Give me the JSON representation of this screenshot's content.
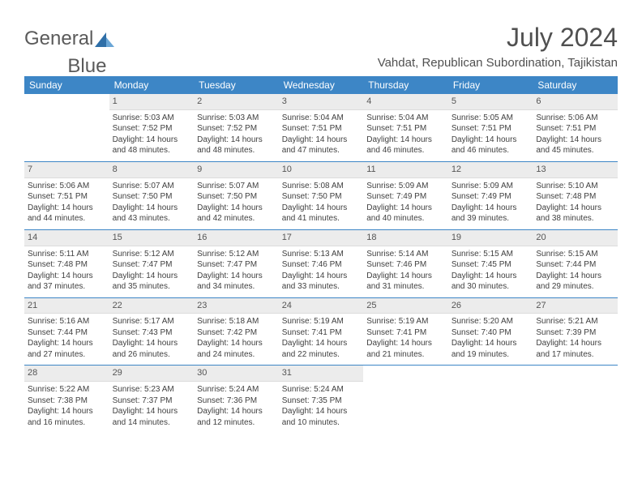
{
  "logo": {
    "word1": "General",
    "word2": "Blue"
  },
  "title": "July 2024",
  "location": "Vahdat, Republican Subordination, Tajikistan",
  "colors": {
    "header_bg": "#3d86c6",
    "header_text": "#ffffff",
    "daynum_bg": "#ececec",
    "text": "#404040",
    "title_text": "#505050",
    "row_border": "#3d86c6"
  },
  "daynames": [
    "Sunday",
    "Monday",
    "Tuesday",
    "Wednesday",
    "Thursday",
    "Friday",
    "Saturday"
  ],
  "weeks": [
    [
      null,
      {
        "num": "1",
        "sunrise": "5:03 AM",
        "sunset": "7:52 PM",
        "daylight": "14 hours and 48 minutes."
      },
      {
        "num": "2",
        "sunrise": "5:03 AM",
        "sunset": "7:52 PM",
        "daylight": "14 hours and 48 minutes."
      },
      {
        "num": "3",
        "sunrise": "5:04 AM",
        "sunset": "7:51 PM",
        "daylight": "14 hours and 47 minutes."
      },
      {
        "num": "4",
        "sunrise": "5:04 AM",
        "sunset": "7:51 PM",
        "daylight": "14 hours and 46 minutes."
      },
      {
        "num": "5",
        "sunrise": "5:05 AM",
        "sunset": "7:51 PM",
        "daylight": "14 hours and 46 minutes."
      },
      {
        "num": "6",
        "sunrise": "5:06 AM",
        "sunset": "7:51 PM",
        "daylight": "14 hours and 45 minutes."
      }
    ],
    [
      {
        "num": "7",
        "sunrise": "5:06 AM",
        "sunset": "7:51 PM",
        "daylight": "14 hours and 44 minutes."
      },
      {
        "num": "8",
        "sunrise": "5:07 AM",
        "sunset": "7:50 PM",
        "daylight": "14 hours and 43 minutes."
      },
      {
        "num": "9",
        "sunrise": "5:07 AM",
        "sunset": "7:50 PM",
        "daylight": "14 hours and 42 minutes."
      },
      {
        "num": "10",
        "sunrise": "5:08 AM",
        "sunset": "7:50 PM",
        "daylight": "14 hours and 41 minutes."
      },
      {
        "num": "11",
        "sunrise": "5:09 AM",
        "sunset": "7:49 PM",
        "daylight": "14 hours and 40 minutes."
      },
      {
        "num": "12",
        "sunrise": "5:09 AM",
        "sunset": "7:49 PM",
        "daylight": "14 hours and 39 minutes."
      },
      {
        "num": "13",
        "sunrise": "5:10 AM",
        "sunset": "7:48 PM",
        "daylight": "14 hours and 38 minutes."
      }
    ],
    [
      {
        "num": "14",
        "sunrise": "5:11 AM",
        "sunset": "7:48 PM",
        "daylight": "14 hours and 37 minutes."
      },
      {
        "num": "15",
        "sunrise": "5:12 AM",
        "sunset": "7:47 PM",
        "daylight": "14 hours and 35 minutes."
      },
      {
        "num": "16",
        "sunrise": "5:12 AM",
        "sunset": "7:47 PM",
        "daylight": "14 hours and 34 minutes."
      },
      {
        "num": "17",
        "sunrise": "5:13 AM",
        "sunset": "7:46 PM",
        "daylight": "14 hours and 33 minutes."
      },
      {
        "num": "18",
        "sunrise": "5:14 AM",
        "sunset": "7:46 PM",
        "daylight": "14 hours and 31 minutes."
      },
      {
        "num": "19",
        "sunrise": "5:15 AM",
        "sunset": "7:45 PM",
        "daylight": "14 hours and 30 minutes."
      },
      {
        "num": "20",
        "sunrise": "5:15 AM",
        "sunset": "7:44 PM",
        "daylight": "14 hours and 29 minutes."
      }
    ],
    [
      {
        "num": "21",
        "sunrise": "5:16 AM",
        "sunset": "7:44 PM",
        "daylight": "14 hours and 27 minutes."
      },
      {
        "num": "22",
        "sunrise": "5:17 AM",
        "sunset": "7:43 PM",
        "daylight": "14 hours and 26 minutes."
      },
      {
        "num": "23",
        "sunrise": "5:18 AM",
        "sunset": "7:42 PM",
        "daylight": "14 hours and 24 minutes."
      },
      {
        "num": "24",
        "sunrise": "5:19 AM",
        "sunset": "7:41 PM",
        "daylight": "14 hours and 22 minutes."
      },
      {
        "num": "25",
        "sunrise": "5:19 AM",
        "sunset": "7:41 PM",
        "daylight": "14 hours and 21 minutes."
      },
      {
        "num": "26",
        "sunrise": "5:20 AM",
        "sunset": "7:40 PM",
        "daylight": "14 hours and 19 minutes."
      },
      {
        "num": "27",
        "sunrise": "5:21 AM",
        "sunset": "7:39 PM",
        "daylight": "14 hours and 17 minutes."
      }
    ],
    [
      {
        "num": "28",
        "sunrise": "5:22 AM",
        "sunset": "7:38 PM",
        "daylight": "14 hours and 16 minutes."
      },
      {
        "num": "29",
        "sunrise": "5:23 AM",
        "sunset": "7:37 PM",
        "daylight": "14 hours and 14 minutes."
      },
      {
        "num": "30",
        "sunrise": "5:24 AM",
        "sunset": "7:36 PM",
        "daylight": "14 hours and 12 minutes."
      },
      {
        "num": "31",
        "sunrise": "5:24 AM",
        "sunset": "7:35 PM",
        "daylight": "14 hours and 10 minutes."
      },
      null,
      null,
      null
    ]
  ],
  "labels": {
    "sunrise": "Sunrise: ",
    "sunset": "Sunset: ",
    "daylight": "Daylight: "
  }
}
